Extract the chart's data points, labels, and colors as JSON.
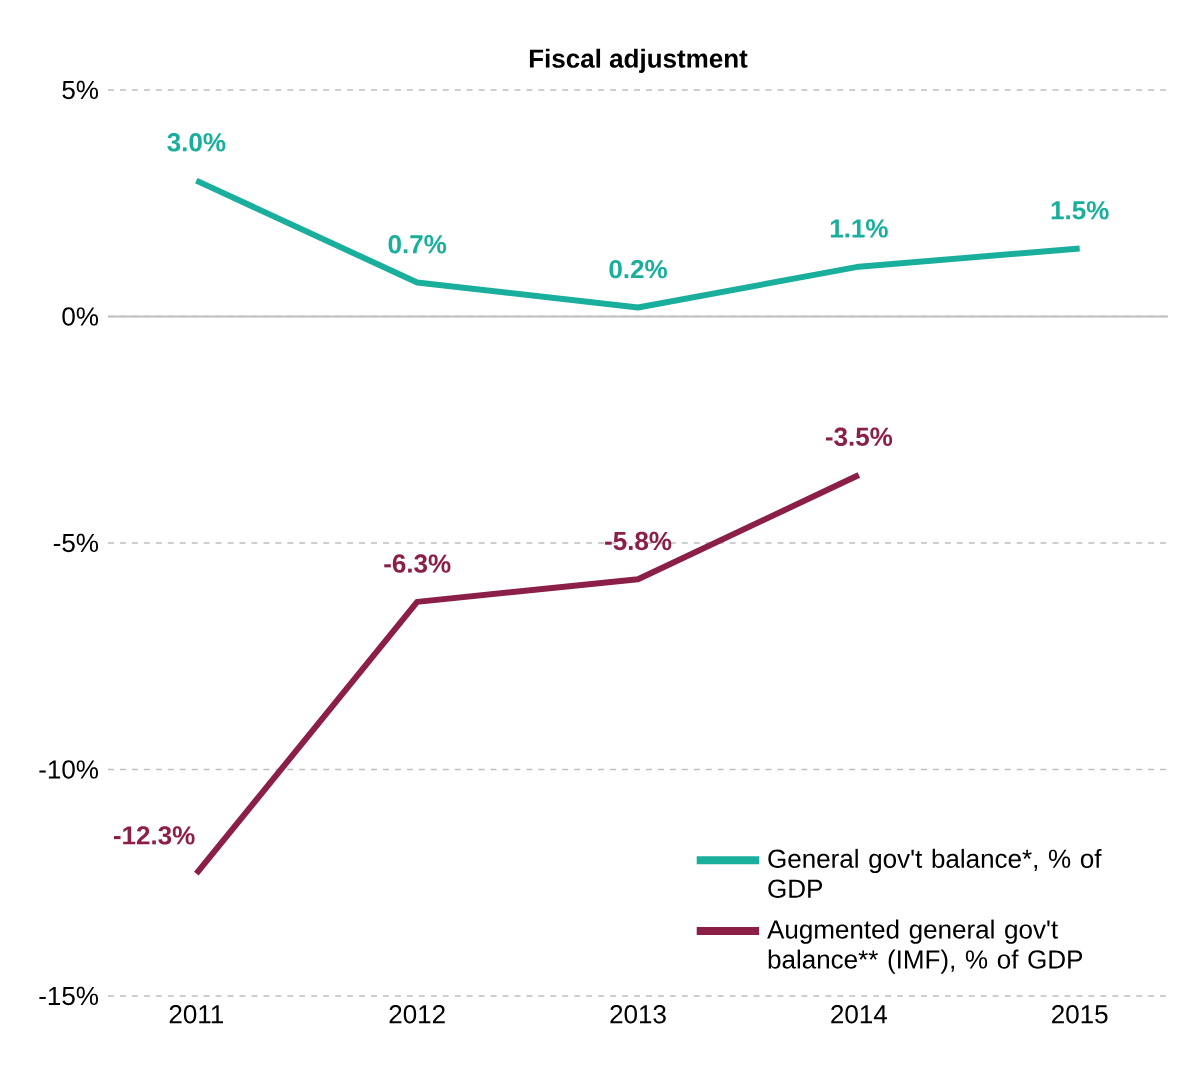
{
  "chart_data": {
    "type": "line",
    "title": "Fiscal adjustment",
    "categories": [
      "2011",
      "2012",
      "2013",
      "2014",
      "2015"
    ],
    "series": [
      {
        "name": "General gov't balance*, % of GDP",
        "color": "#1aaf9c",
        "values": [
          3.0,
          0.75,
          0.2,
          1.1,
          1.5
        ],
        "value_labels": [
          "3.0%",
          "0.7%",
          "0.2%",
          "1.1%",
          "1.5%"
        ]
      },
      {
        "name": "Augmented general gov't balance** (IMF), % of GDP",
        "color": "#8c1f48",
        "values": [
          -12.3,
          -6.3,
          -5.8,
          -3.5,
          null
        ],
        "value_labels": [
          "-12.3%",
          "-6.3%",
          "-5.8%",
          "-3.5%",
          null
        ]
      }
    ],
    "ylim": [
      -15,
      5
    ],
    "yticks": [
      {
        "value": 5,
        "label": "5%"
      },
      {
        "value": 0,
        "label": "0%"
      },
      {
        "value": -5,
        "label": "-5%"
      },
      {
        "value": -10,
        "label": "-10%"
      },
      {
        "value": -15,
        "label": "-15%"
      }
    ],
    "grid": "y",
    "legend": "bottom right",
    "marker": "none",
    "line_style": "solid",
    "ref_lines": [
      {
        "axis": "y",
        "value": 0,
        "color": "#bfbfbf"
      }
    ]
  }
}
